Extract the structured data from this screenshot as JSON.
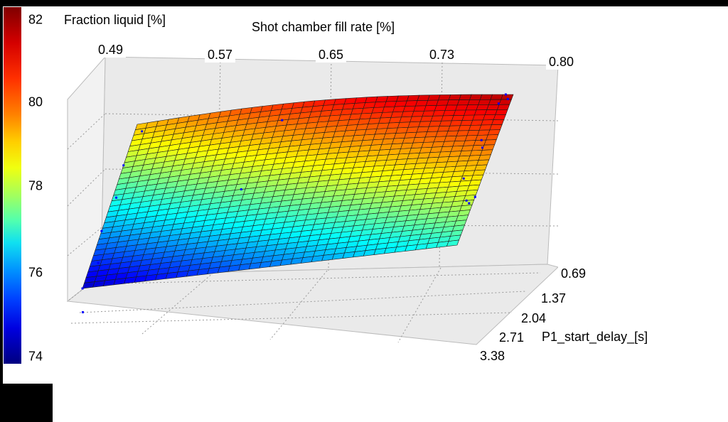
{
  "chart_data": {
    "type": "surface",
    "colorbar": {
      "title": "Fraction liquid [%]",
      "ticks": [
        "82",
        "80",
        "78",
        "76",
        "74"
      ],
      "range": [
        74,
        82
      ],
      "colormap": "jet"
    },
    "xlabel": "Shot chamber fill rate [%]",
    "x_ticks": [
      "0.49",
      "0.57",
      "0.65",
      "0.73",
      "0.80"
    ],
    "xlim": [
      0.49,
      0.8
    ],
    "ylabel": "P1_start_delay_[s]",
    "y_ticks": [
      "0.69",
      "1.37",
      "2.04",
      "2.71",
      "3.38"
    ],
    "ylim": [
      0.69,
      3.38
    ],
    "zlim": [
      74,
      82
    ],
    "grid": true,
    "surface_corners": {
      "x049_y069": 79.5,
      "x080_y069": 81.6,
      "x049_y338": 74.5,
      "x080_y338": 77.3
    },
    "scatter_color": "#0000ff"
  }
}
